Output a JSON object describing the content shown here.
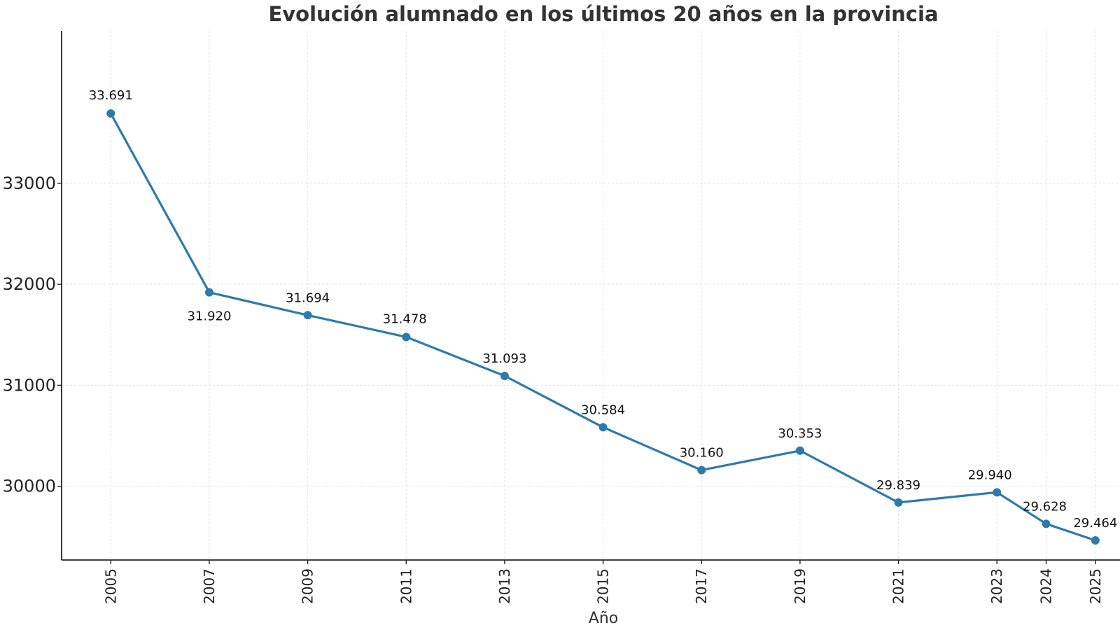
{
  "chart_data": {
    "type": "line",
    "title": "Evolución alumnado en los últimos 20 años en la provincia",
    "xlabel": "Año",
    "ylabel": "",
    "x": [
      2005,
      2007,
      2009,
      2011,
      2013,
      2015,
      2017,
      2019,
      2021,
      2023,
      2024,
      2025
    ],
    "x_tick_labels": [
      "2005",
      "2007",
      "2009",
      "2011",
      "2013",
      "2015",
      "2017",
      "2019",
      "2021",
      "2023",
      "2024",
      "2025"
    ],
    "values": [
      33691,
      31920,
      31694,
      31478,
      31093,
      30584,
      30160,
      30353,
      29839,
      29940,
      29628,
      29464
    ],
    "data_labels": [
      "33.691",
      "31.920",
      "31.694",
      "31.478",
      "31.093",
      "30.584",
      "30.160",
      "30.353",
      "29.839",
      "29.940",
      "29.628",
      "29.464"
    ],
    "y_ticks": [
      30000,
      31000,
      32000,
      33000
    ],
    "y_tick_labels": [
      "30000",
      "31000",
      "32000",
      "33000"
    ],
    "ylim": [
      29270,
      34510
    ],
    "xlim": [
      2004.0,
      2025.5
    ],
    "grid": true,
    "line_color": "#2c7bab"
  }
}
